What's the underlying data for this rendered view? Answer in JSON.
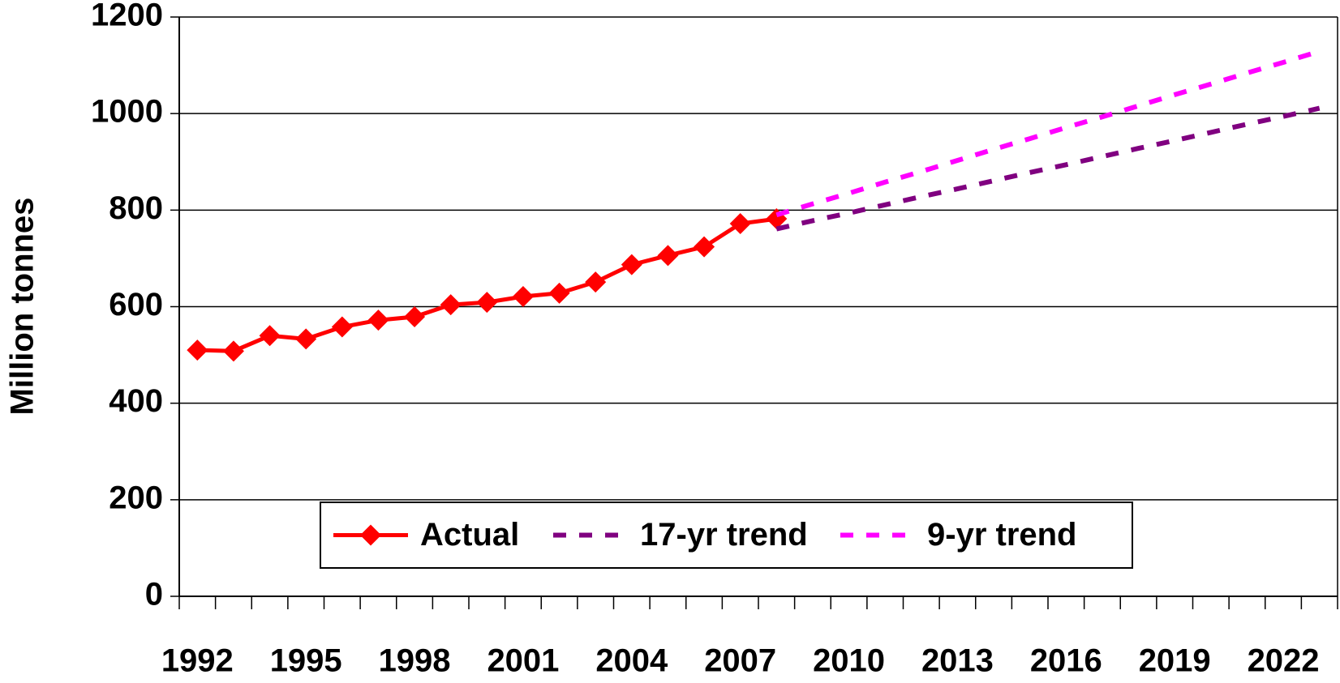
{
  "chart_data": {
    "type": "line",
    "ylabel": "Million tonnes",
    "categories": [
      "1992",
      null,
      null,
      "1995",
      null,
      null,
      "1998",
      null,
      null,
      "2001",
      null,
      null,
      "2004",
      null,
      null,
      "2007",
      null,
      null,
      "2010",
      null,
      null,
      "2013",
      null,
      null,
      "2016",
      null,
      null,
      "2019",
      null,
      null,
      "2022",
      null
    ],
    "series": [
      {
        "name": "Actual",
        "color": "#ff0000",
        "style": "solid",
        "marker": "diamond",
        "values": [
          510,
          508,
          540,
          533,
          558,
          572,
          579,
          604,
          609,
          621,
          628,
          651,
          687,
          706,
          724,
          772,
          782,
          null,
          null,
          null,
          null,
          null,
          null,
          null,
          null,
          null,
          null,
          null,
          null,
          null,
          null,
          null
        ]
      },
      {
        "name": "17-yr trend",
        "color": "#800080",
        "style": "dashed",
        "marker": "none",
        "values": [
          null,
          null,
          null,
          null,
          null,
          null,
          null,
          null,
          null,
          null,
          null,
          null,
          null,
          null,
          null,
          null,
          761,
          778,
          794,
          811,
          828,
          844,
          861,
          878,
          894,
          911,
          928,
          944,
          961,
          978,
          994,
          1011
        ]
      },
      {
        "name": "9-yr trend",
        "color": "#ff00ff",
        "style": "dashed",
        "marker": "none",
        "values": [
          null,
          null,
          null,
          null,
          null,
          null,
          null,
          null,
          null,
          null,
          null,
          null,
          null,
          null,
          null,
          null,
          790,
          813,
          835,
          858,
          880,
          903,
          926,
          948,
          971,
          993,
          1016,
          1039,
          1061,
          1084,
          1106,
          1129
        ]
      }
    ],
    "ylim": [
      0,
      1200
    ],
    "yticks": [
      0,
      200,
      400,
      600,
      800,
      1000,
      1200
    ],
    "grid": true,
    "legend": "bottom"
  }
}
